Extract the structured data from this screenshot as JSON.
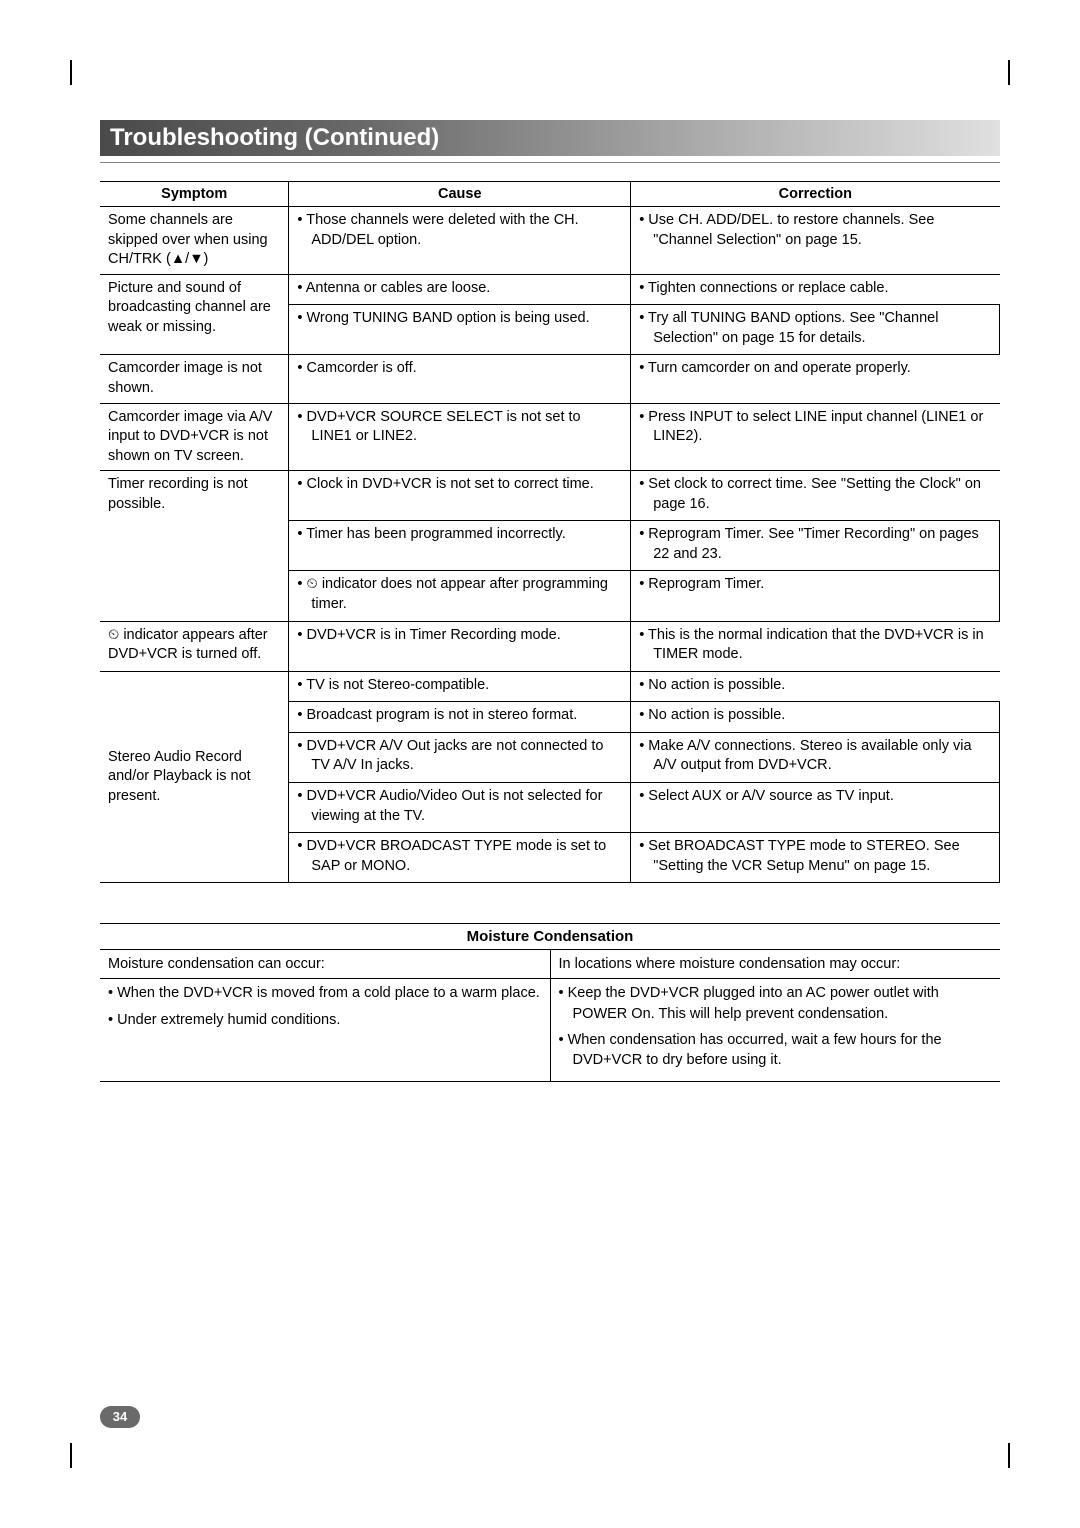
{
  "title": "Troubleshooting (Continued)",
  "headers": {
    "c1": "Symptom",
    "c2": "Cause",
    "c3": "Correction"
  },
  "rows": {
    "r1": {
      "sym": "Some channels are skipped over when using CH/TRK (▲/▼)",
      "cause": "Those channels were deleted with the CH. ADD/DEL option.",
      "corr": "Use CH. ADD/DEL. to restore channels. See \"Channel Selection\" on page 15."
    },
    "r2a": {
      "sym": "Picture and sound of broadcasting channel are weak or missing.",
      "cause": "Antenna or cables are loose.",
      "corr": "Tighten connections or replace cable."
    },
    "r2b": {
      "cause": "Wrong TUNING BAND option is being used.",
      "corr": "Try all TUNING BAND options. See \"Channel Selection\" on page 15 for details."
    },
    "r3": {
      "sym": "Camcorder image is not shown.",
      "cause": "Camcorder is off.",
      "corr": "Turn camcorder on and operate properly."
    },
    "r4": {
      "sym": "Camcorder image via A/V input to DVD+VCR is not shown on TV screen.",
      "cause": "DVD+VCR SOURCE SELECT is not set to LINE1 or LINE2.",
      "corr": "Press INPUT to select LINE input channel (LINE1 or LINE2)."
    },
    "r5a": {
      "sym": "Timer recording is not possible.",
      "cause": "Clock in DVD+VCR is not set to correct time.",
      "corr": "Set clock to correct time. See \"Setting the Clock\" on page 16."
    },
    "r5b": {
      "cause": "Timer has been programmed incorrectly.",
      "corr": "Reprogram Timer. See \"Timer Recording\" on pages 22 and 23."
    },
    "r5c": {
      "cause": "⏲ indicator does not appear after programming timer.",
      "corr": "Reprogram Timer."
    },
    "r6": {
      "sym": "⏲ indicator appears after DVD+VCR is turned off.",
      "cause": "DVD+VCR is in Timer Recording mode.",
      "corr": "This is the normal indication that the DVD+VCR is in TIMER mode."
    },
    "r7a": {
      "sym": "Stereo Audio Record and/or Playback is not present.",
      "cause": "TV is not Stereo-compatible.",
      "corr": "No action is possible."
    },
    "r7b": {
      "cause": "Broadcast program is not in stereo format.",
      "corr": "No action is possible."
    },
    "r7c": {
      "cause": "DVD+VCR A/V Out jacks are not connected to TV A/V In jacks.",
      "corr": "Make A/V connections. Stereo is available only via A/V output from DVD+VCR."
    },
    "r7d": {
      "cause": "DVD+VCR Audio/Video Out is not selected for viewing at the TV.",
      "corr": "Select AUX or A/V source as TV input."
    },
    "r7e": {
      "cause": "DVD+VCR BROADCAST TYPE mode is set to SAP or MONO.",
      "corr": "Set BROADCAST TYPE mode to STEREO. See \"Setting the VCR Setup Menu\" on page 15."
    }
  },
  "moisture": {
    "heading": "Moisture Condensation",
    "left_top": "Moisture condensation can occur:",
    "right_top": "In locations where moisture condensation may occur:",
    "left_a": "When the DVD+VCR is moved from a cold place to a warm place.",
    "left_b": "Under extremely humid conditions.",
    "right_a": "Keep the DVD+VCR plugged into an AC power outlet with POWER On. This will help prevent condensation.",
    "right_b": "When condensation has occurred, wait a few hours for the DVD+VCR to dry before using it."
  },
  "page_number": "34"
}
